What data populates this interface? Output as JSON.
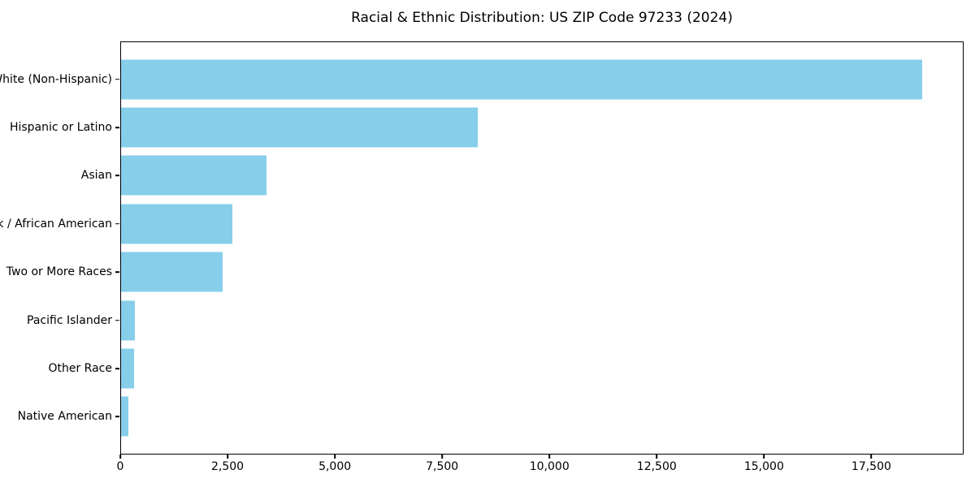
{
  "chart_data": {
    "type": "bar",
    "orientation": "horizontal",
    "title": "Racial & Ethnic Distribution: US ZIP Code 97233 (2024)",
    "categories": [
      "White (Non-Hispanic)",
      "Hispanic or Latino",
      "Asian",
      "Black / African American",
      "Two or More Races",
      "Pacific Islander",
      "Other Race",
      "Native American"
    ],
    "values": [
      18700,
      8330,
      3390,
      2600,
      2370,
      330,
      300,
      180
    ],
    "xlabel": "",
    "ylabel": "",
    "xlim": [
      0,
      19650
    ],
    "x_ticks": [
      {
        "value": 0,
        "label": "0"
      },
      {
        "value": 2500,
        "label": "2,500"
      },
      {
        "value": 5000,
        "label": "5,000"
      },
      {
        "value": 7500,
        "label": "7,500"
      },
      {
        "value": 10000,
        "label": "10,000"
      },
      {
        "value": 12500,
        "label": "12,500"
      },
      {
        "value": 15000,
        "label": "15,000"
      },
      {
        "value": 17500,
        "label": "17,500"
      }
    ],
    "bar_color": "#87CEEB",
    "background_color": "#FFFFFF",
    "axis_color": "#000000",
    "grid": false,
    "legend": null
  }
}
